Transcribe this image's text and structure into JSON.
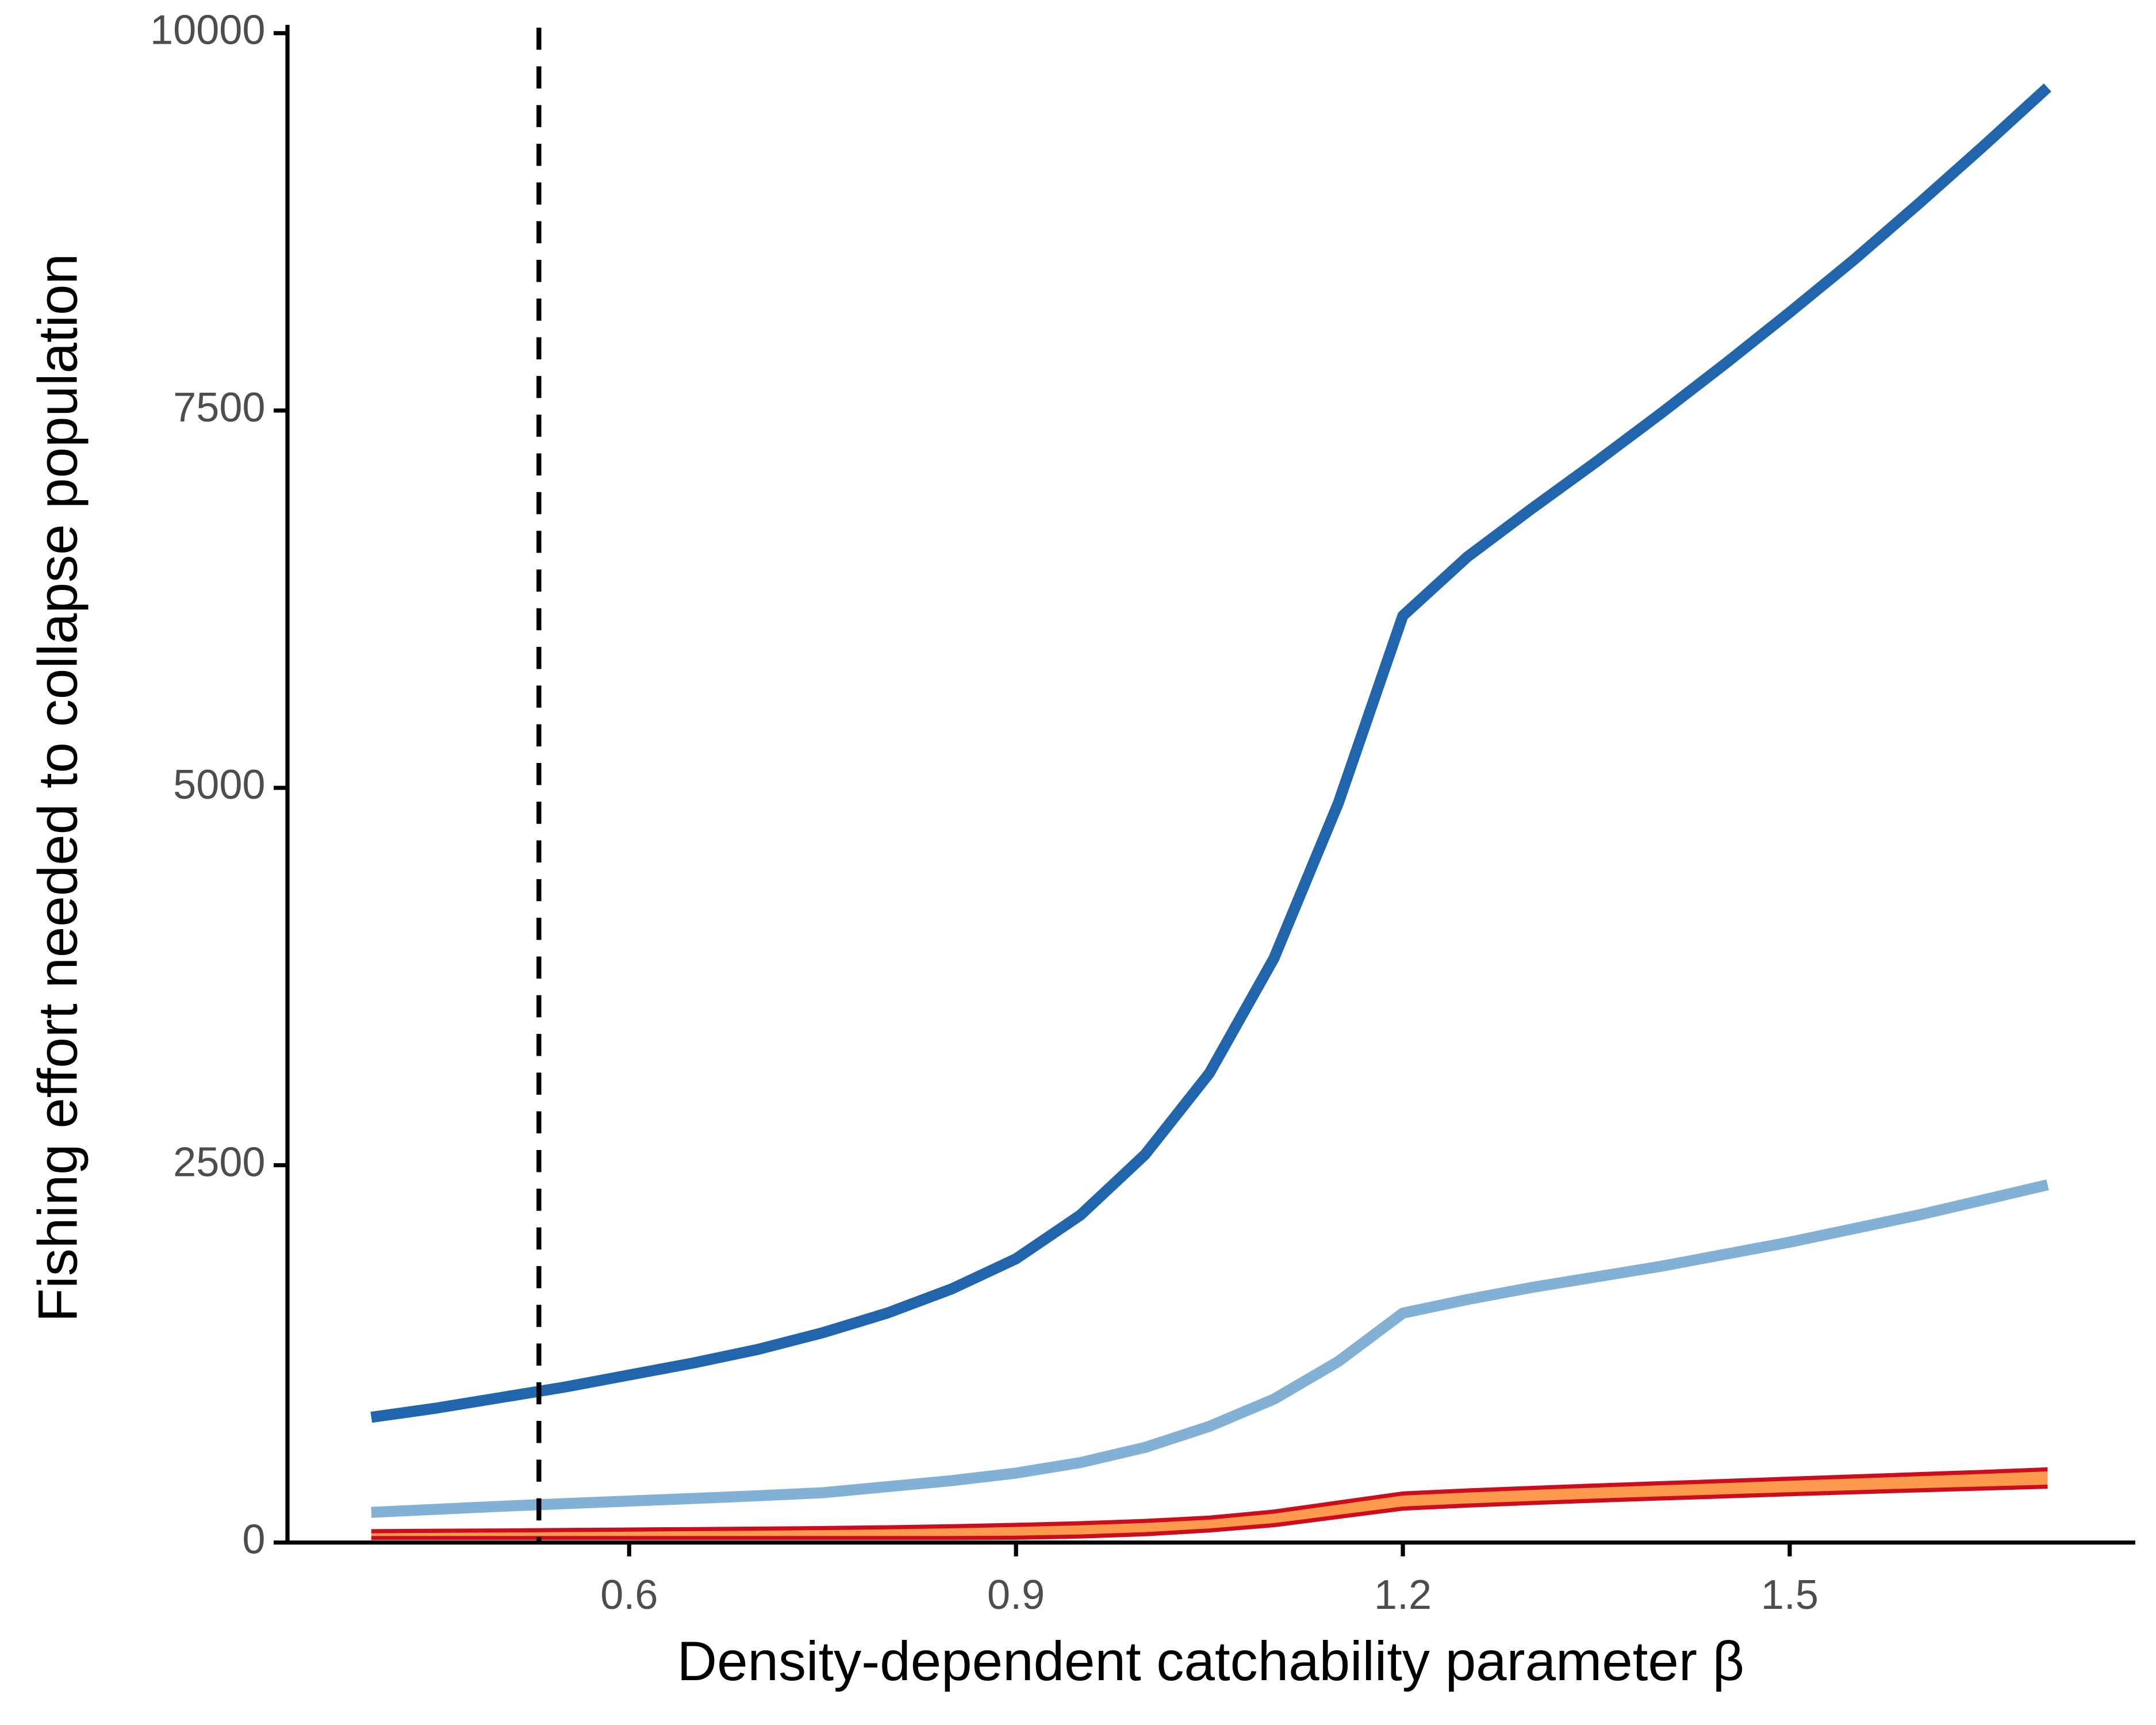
{
  "chart_data": {
    "type": "line",
    "x_label": "Density-dependent catchability parameter β",
    "y_label": "Fishing effort needed to collapse population",
    "x": [
      0.4,
      0.45,
      0.5,
      0.55,
      0.6,
      0.65,
      0.7,
      0.75,
      0.8,
      0.85,
      0.9,
      0.95,
      1.0,
      1.05,
      1.1,
      1.15,
      1.2,
      1.25,
      1.3,
      1.35,
      1.4,
      1.45,
      1.5,
      1.55,
      1.6,
      1.65,
      1.7
    ],
    "series": [
      {
        "color": "#2166ac",
        "values": [
          830,
          890,
          960,
          1030,
          1110,
          1190,
          1280,
          1390,
          1520,
          1680,
          1880,
          2170,
          2570,
          3110,
          3870,
          4900,
          6140,
          6530,
          6850,
          7160,
          7480,
          7810,
          8150,
          8500,
          8870,
          9250,
          9640
        ]
      },
      {
        "color": "#82b1d5",
        "values": [
          200,
          220,
          240,
          258,
          275,
          292,
          310,
          330,
          370,
          410,
          460,
          530,
          630,
          770,
          950,
          1200,
          1520,
          1610,
          1690,
          1760,
          1830,
          1910,
          1990,
          2080,
          2170,
          2270,
          2370
        ]
      }
    ],
    "bands": [
      {
        "color": "#fd9a4e",
        "stroke": "#cb0d1e",
        "upper": [
          75,
          78,
          80,
          83,
          86,
          89,
          92,
          96,
          101,
          108,
          117,
          128,
          143,
          165,
          205,
          265,
          325,
          345,
          362,
          378,
          393,
          408,
          423,
          438,
          453,
          468,
          485
        ],
        "lower": [
          30,
          30,
          30,
          30,
          30,
          30,
          30,
          30,
          30,
          30,
          32,
          40,
          55,
          80,
          115,
          170,
          225,
          245,
          262,
          278,
          292,
          306,
          320,
          333,
          346,
          358,
          370
        ]
      }
    ],
    "vlines": [
      0.53
    ],
    "xlim": [
      0.335,
      1.768
    ],
    "ylim": [
      0,
      10000
    ],
    "xticks": [
      0.6,
      0.9,
      1.2,
      1.5
    ],
    "yticks": [
      0,
      2500,
      5000,
      7500,
      10000
    ]
  }
}
